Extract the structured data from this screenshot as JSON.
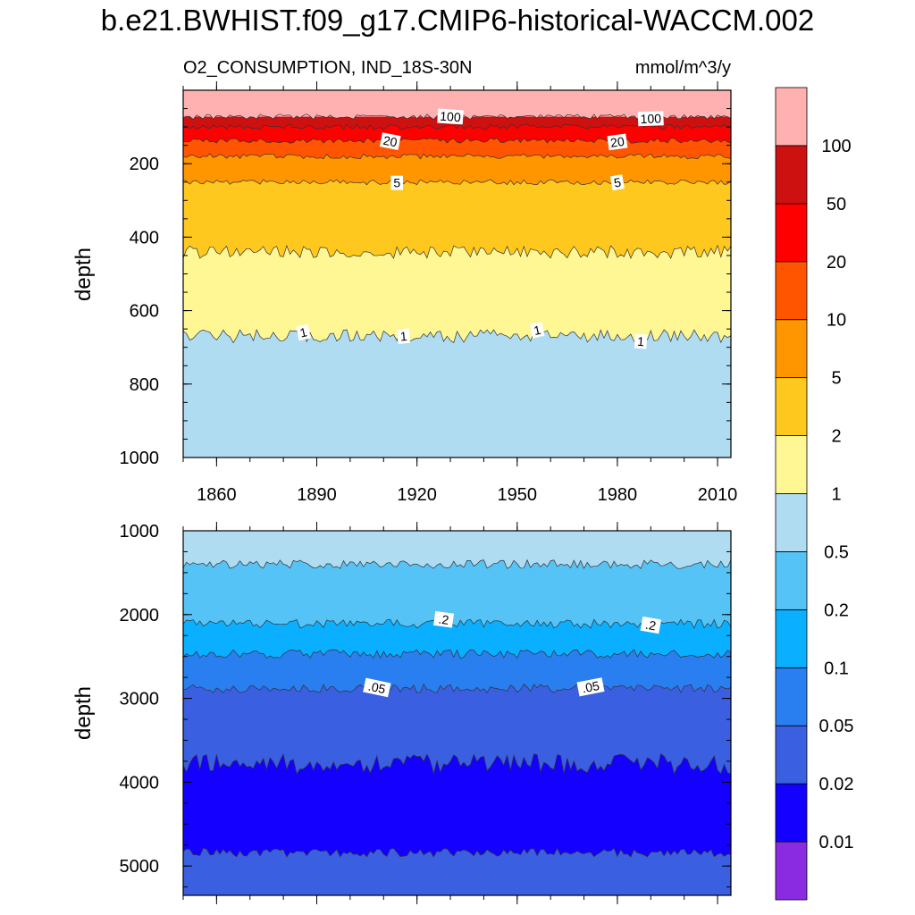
{
  "title": "b.e21.BWHIST.f09_g17.CMIP6-historical-WACCM.002",
  "chart_data": {
    "type": "contour",
    "variable": "O2_CONSUMPTION, IND_18S-30N",
    "units": "mmol/m^3/y",
    "xlabel": "",
    "ylabel": "depth",
    "x_range": [
      1850,
      2014
    ],
    "x_ticks": [
      1860,
      1890,
      1920,
      1950,
      1980,
      2010
    ],
    "colorbar": {
      "levels": [
        0.01,
        0.02,
        0.05,
        0.1,
        0.2,
        0.5,
        1,
        2,
        5,
        10,
        20,
        50,
        100
      ],
      "labels": [
        "0.01",
        "0.02",
        "0.05",
        "0.1",
        "0.2",
        "0.5",
        "1",
        "2",
        "5",
        "10",
        "20",
        "50",
        "100"
      ],
      "colors": [
        "#8a2be2",
        "#1400ff",
        "#3a5fe0",
        "#2a7ff0",
        "#0aafff",
        "#55c3f5",
        "#b0dcf2",
        "#fff694",
        "#ffc81e",
        "#ff9600",
        "#ff5500",
        "#ff0000",
        "#cd1010",
        "#ffb1b1"
      ]
    },
    "panels": [
      {
        "name": "upper",
        "ylim": [
          0,
          1000
        ],
        "y_ticks": [
          200,
          400,
          600,
          800,
          1000
        ],
        "top_depth": 25,
        "contours": [
          {
            "level": 100,
            "depth": 72,
            "label": "100",
            "label_years": [
              1930,
              1990
            ]
          },
          {
            "level": 50,
            "depth": 100,
            "label": "",
            "label_years": []
          },
          {
            "level": 20,
            "depth": 137,
            "label": "20",
            "label_years": [
              1912,
              1980
            ]
          },
          {
            "level": 10,
            "depth": 180,
            "label": "",
            "label_years": []
          },
          {
            "level": 5,
            "depth": 250,
            "label": "5",
            "label_years": [
              1914,
              1980
            ]
          },
          {
            "level": 2,
            "depth": 440,
            "label": "",
            "label_years": []
          },
          {
            "level": 1,
            "depth": 670,
            "label": "1",
            "label_years": [
              1886,
              1916,
              1956,
              1987
            ]
          }
        ]
      },
      {
        "name": "lower",
        "ylim": [
          1000,
          5350
        ],
        "y_ticks": [
          1000,
          2000,
          3000,
          4000,
          5000
        ],
        "contours": [
          {
            "level": 0.5,
            "depth": 1400,
            "label": "",
            "label_years": []
          },
          {
            "level": 0.2,
            "depth": 2110,
            "label": ".2",
            "label_years": [
              1928,
              1990
            ]
          },
          {
            "level": 0.1,
            "depth": 2470,
            "label": "",
            "label_years": []
          },
          {
            "level": 0.05,
            "depth": 2880,
            "label": ".05",
            "label_years": [
              1908,
              1972
            ]
          },
          {
            "level": 0.02,
            "depth": 3780,
            "label": "",
            "label_years": []
          },
          {
            "level": 0.05,
            "depth": 4840,
            "label": "",
            "label_years": []
          }
        ]
      }
    ]
  }
}
